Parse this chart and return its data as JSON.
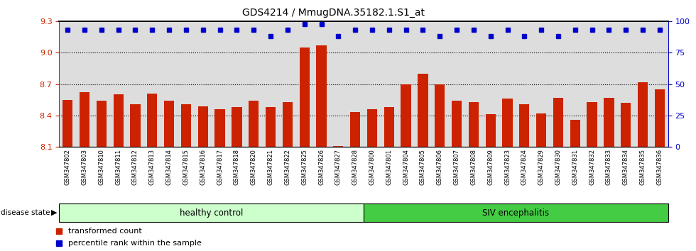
{
  "title": "GDS4214 / MmugDNA.35182.1.S1_at",
  "samples": [
    "GSM347802",
    "GSM347803",
    "GSM347810",
    "GSM347811",
    "GSM347812",
    "GSM347813",
    "GSM347814",
    "GSM347815",
    "GSM347816",
    "GSM347817",
    "GSM347818",
    "GSM347820",
    "GSM347821",
    "GSM347822",
    "GSM347825",
    "GSM347826",
    "GSM347827",
    "GSM347828",
    "GSM347800",
    "GSM347801",
    "GSM347804",
    "GSM347805",
    "GSM347806",
    "GSM347807",
    "GSM347808",
    "GSM347809",
    "GSM347823",
    "GSM347824",
    "GSM347829",
    "GSM347830",
    "GSM347831",
    "GSM347832",
    "GSM347833",
    "GSM347834",
    "GSM347835",
    "GSM347836"
  ],
  "bar_values": [
    8.55,
    8.62,
    8.54,
    8.6,
    8.51,
    8.61,
    8.54,
    8.51,
    8.49,
    8.46,
    8.48,
    8.54,
    8.48,
    8.53,
    9.05,
    9.07,
    8.11,
    8.43,
    8.46,
    8.48,
    8.7,
    8.8,
    8.7,
    8.54,
    8.53,
    8.41,
    8.56,
    8.51,
    8.42,
    8.57,
    8.36,
    8.53,
    8.57,
    8.52,
    8.72,
    8.65
  ],
  "percentile_values": [
    93,
    93,
    93,
    93,
    93,
    93,
    93,
    93,
    93,
    93,
    93,
    93,
    88,
    93,
    98,
    98,
    88,
    93,
    93,
    93,
    93,
    93,
    88,
    93,
    93,
    88,
    93,
    88,
    93,
    88,
    93,
    93,
    93,
    93,
    93,
    93
  ],
  "healthy_control_count": 18,
  "ylim_left": [
    8.1,
    9.3
  ],
  "ylim_right": [
    0,
    100
  ],
  "yticks_left": [
    8.1,
    8.4,
    8.7,
    9.0,
    9.3
  ],
  "yticks_right": [
    0,
    25,
    50,
    75,
    100
  ],
  "bar_color": "#cc2200",
  "dot_color": "#0000cc",
  "healthy_bg": "#ccffcc",
  "siv_bg": "#44cc44",
  "axis_bg": "#dddddd",
  "legend_red_label": "transformed count",
  "legend_blue_label": "percentile rank within the sample",
  "healthy_label": "healthy control",
  "siv_label": "SIV encephalitis",
  "disease_state_label": "disease state"
}
